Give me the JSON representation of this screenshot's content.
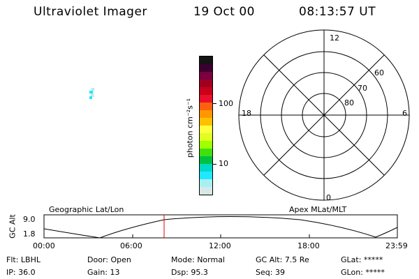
{
  "header": {
    "instrument": "Ultraviolet Imager",
    "date": "19 Oct 00",
    "time": "08:13:57 UT"
  },
  "colorbar": {
    "unit_label": "photon cm⁻²s⁻¹",
    "ticks": [
      "100",
      "10"
    ],
    "colors": [
      "#141414",
      "#3a0030",
      "#7a0040",
      "#a00020",
      "#c80018",
      "#e8102a",
      "#ff6010",
      "#ff9800",
      "#ffc000",
      "#ffff40",
      "#e0ff20",
      "#a0ff00",
      "#40e010",
      "#00c040",
      "#00d8c8",
      "#20e8ff",
      "#a8f0f0",
      "#d8e8e8"
    ]
  },
  "polar": {
    "mlt_labels": {
      "top": "12",
      "left": "18",
      "right": "6",
      "bottom": "0"
    },
    "lat_labels": [
      "80",
      "70",
      "60"
    ]
  },
  "timeline": {
    "y_axis_label": "GC Alt",
    "y_ticks": [
      "9.0",
      "1.8"
    ],
    "left_caption": "Geographic Lat/Lon",
    "right_caption": "Apex MLat/MLT",
    "x_ticks": [
      "00:00",
      "06:00",
      "12:00",
      "18:00",
      "23:59"
    ],
    "marker_color": "#e00000"
  },
  "info": {
    "row1": [
      {
        "label": "Flt:",
        "value": "LBHL"
      },
      {
        "label": "Door:",
        "value": "Open"
      },
      {
        "label": "Mode:",
        "value": "Normal"
      },
      {
        "label": "GC Alt:",
        "value": "7.5 Re"
      },
      {
        "label": "GLat:",
        "value": "*****"
      }
    ],
    "row2": [
      {
        "label": "IP:",
        "value": "36.0"
      },
      {
        "label": "Gain:",
        "value": "13"
      },
      {
        "label": "Dsp:",
        "value": "95.3"
      },
      {
        "label": "Seq:",
        "value": "39"
      },
      {
        "label": "GLon:",
        "value": "*****"
      }
    ]
  }
}
